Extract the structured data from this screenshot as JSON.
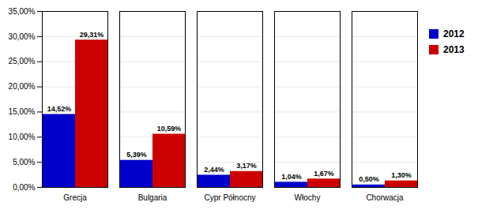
{
  "chart_data": {
    "type": "bar",
    "categories": [
      "Grecja",
      "Bulgaria",
      "Cypr Północny",
      "Włochy",
      "Chorwacja"
    ],
    "series": [
      {
        "name": "2012",
        "color": "#0000CC",
        "values": [
          14.52,
          5.39,
          2.44,
          1.04,
          0.5
        ],
        "value_labels": [
          "14,52%",
          "5,39%",
          "2,44%",
          "1,04%",
          "0,50%"
        ]
      },
      {
        "name": "2013",
        "color": "#CC0000",
        "values": [
          29.31,
          10.59,
          3.17,
          1.67,
          1.3
        ],
        "value_labels": [
          "29,31%",
          "10,59%",
          "3,17%",
          "1,67%",
          "1,30%"
        ]
      }
    ],
    "ylim": [
      0,
      35
    ],
    "yticks": [
      {
        "value": 0,
        "label": "0,00%"
      },
      {
        "value": 5,
        "label": "5,00%"
      },
      {
        "value": 10,
        "label": "10,00%"
      },
      {
        "value": 15,
        "label": "15,00%"
      },
      {
        "value": 20,
        "label": "20,00%"
      },
      {
        "value": 25,
        "label": "25,00%"
      },
      {
        "value": 30,
        "label": "30,00%"
      },
      {
        "value": 35,
        "label": "35,00%"
      }
    ],
    "grid": true,
    "legend": "right",
    "data_labels": true
  }
}
